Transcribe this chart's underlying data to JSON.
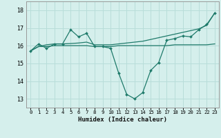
{
  "xlabel": "Humidex (Indice chaleur)",
  "x": [
    0,
    1,
    2,
    3,
    4,
    5,
    6,
    7,
    8,
    9,
    10,
    11,
    12,
    13,
    14,
    15,
    16,
    17,
    18,
    19,
    20,
    21,
    22,
    23
  ],
  "line_spiky": [
    15.7,
    16.1,
    15.85,
    16.1,
    16.1,
    16.9,
    16.5,
    16.7,
    15.95,
    15.95,
    15.85,
    14.45,
    13.25,
    13.0,
    13.35,
    14.6,
    15.05,
    16.3,
    16.4,
    16.55,
    16.5,
    16.9,
    17.2,
    17.85
  ],
  "line_trend": [
    15.7,
    15.95,
    16.05,
    16.1,
    16.1,
    16.12,
    16.15,
    16.2,
    16.05,
    16.05,
    16.05,
    16.1,
    16.15,
    16.2,
    16.25,
    16.35,
    16.45,
    16.55,
    16.65,
    16.75,
    16.85,
    16.95,
    17.15,
    17.85
  ],
  "line_flat": [
    15.7,
    15.95,
    15.95,
    16.0,
    16.0,
    16.0,
    16.0,
    16.0,
    15.95,
    15.95,
    15.95,
    16.0,
    16.0,
    16.0,
    16.0,
    16.0,
    16.0,
    16.0,
    16.05,
    16.05,
    16.05,
    16.05,
    16.05,
    16.1
  ],
  "background_color": "#d5efec",
  "grid_color": "#b8ddd9",
  "line_color": "#1e7a6a",
  "ylim": [
    12.5,
    18.5
  ],
  "xlim": [
    -0.5,
    23.5
  ],
  "yticks": [
    13,
    14,
    15,
    16,
    17,
    18
  ],
  "xticks": [
    0,
    1,
    2,
    3,
    4,
    5,
    6,
    7,
    8,
    9,
    10,
    11,
    12,
    13,
    14,
    15,
    16,
    17,
    18,
    19,
    20,
    21,
    22,
    23
  ]
}
